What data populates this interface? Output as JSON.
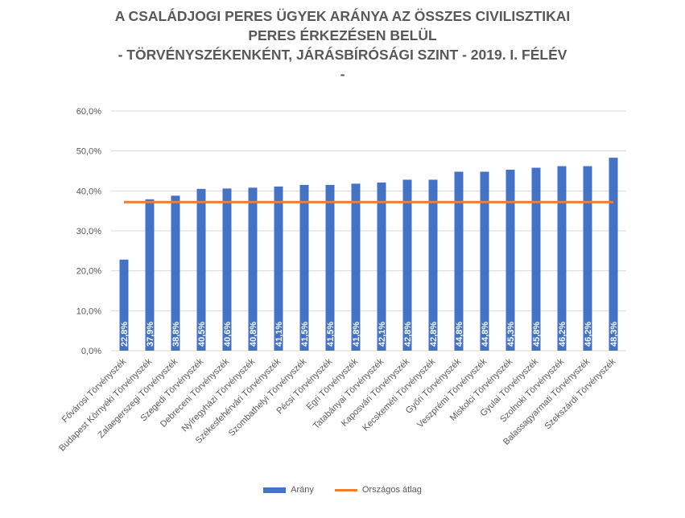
{
  "title": {
    "line1": "A CSALÁDJOGI PERES ÜGYEK ARÁNYA AZ ÖSSZES CIVILISZTIKAI",
    "line2": "PERES ÉRKEZÉSEN BELÜL",
    "line3": "- TÖRVÉNYSZÉKENKÉNT, JÁRÁSBÍRÓSÁGI SZINT - 2019. I. FÉLÉV",
    "line4": "-"
  },
  "legend": {
    "bar_label": "Arány",
    "line_label": "Országos átlag"
  },
  "colors": {
    "bar": "#4472C4",
    "line": "#ED7D31",
    "grid": "#D9D9D9",
    "text": "#595959"
  },
  "chart_data": {
    "type": "bar",
    "categories": [
      "Fővárosi Törvényszék",
      "Budapest Környéki Törvényszék",
      "Zalaegerszegi Törvényszék",
      "Szegedi Törvényszék",
      "Debreceni Törvényszék",
      "Nyíregyházi Törvényszék",
      "Székesfehérvári Törvényszék",
      "Szombathelyi Törvényszék",
      "Pécsi Törvényszék",
      "Egri Törvényszék",
      "Tatabányai Törvényszék",
      "Kaposvári Törvényszék",
      "Kecskeméti Törvényszék",
      "Győri Törvényszék",
      "Veszprémi Törvényszék",
      "Miskolci Törvényszék",
      "Gyulai Törvényszék",
      "Szolnoki Törvényszék",
      "Balassagyarmati Törvényszék",
      "Szekszárdi Törvényszék"
    ],
    "series": [
      {
        "name": "Arány",
        "values": [
          22.8,
          37.9,
          38.8,
          40.5,
          40.6,
          40.8,
          41.1,
          41.5,
          41.5,
          41.8,
          42.1,
          42.8,
          42.8,
          44.8,
          44.8,
          45.3,
          45.8,
          46.2,
          46.2,
          48.3
        ],
        "data_labels": [
          "22,8%",
          "37,9%",
          "38,8%",
          "40,5%",
          "40,6%",
          "40,8%",
          "41,1%",
          "41,5%",
          "41,5%",
          "41,8%",
          "42,1%",
          "42,8%",
          "42,8%",
          "44,8%",
          "44,8%",
          "45,3%",
          "45,8%",
          "46,2%",
          "46,2%",
          "48,3%"
        ]
      },
      {
        "name": "Országos átlag",
        "type": "line",
        "value": 37.2
      }
    ],
    "ylim": [
      0,
      60
    ],
    "yticks": [
      0,
      10,
      20,
      30,
      40,
      50,
      60
    ],
    "ytick_labels": [
      "0,0%",
      "10,0%",
      "20,0%",
      "30,0%",
      "40,0%",
      "50,0%",
      "60,0%"
    ],
    "grid": true,
    "legend_position": "bottom"
  }
}
